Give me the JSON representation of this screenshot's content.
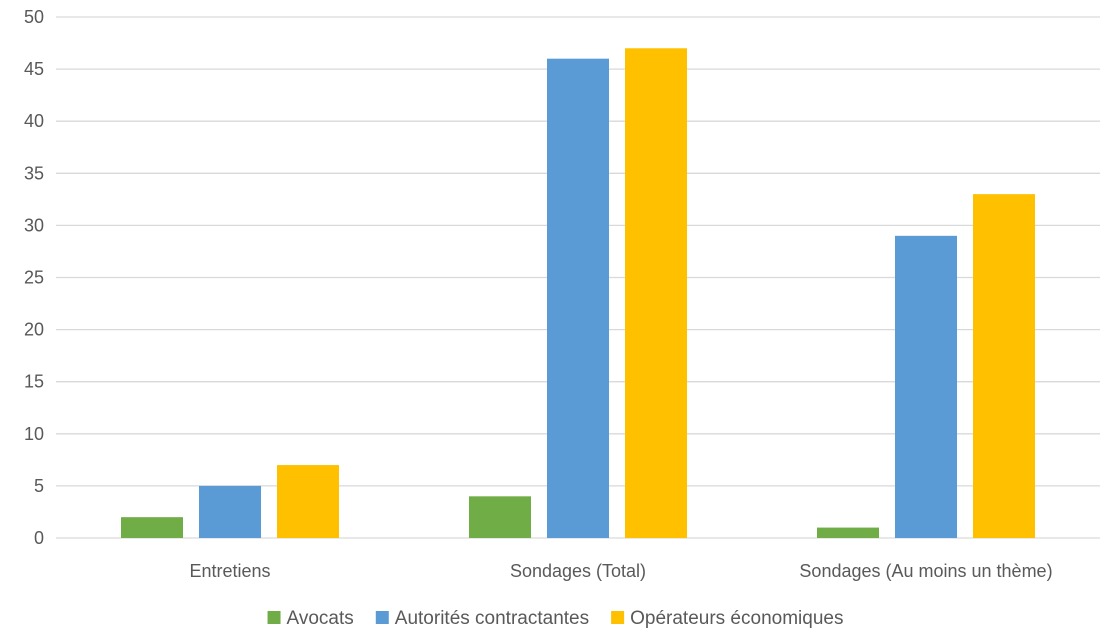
{
  "chart_data": {
    "type": "bar",
    "title": "",
    "xlabel": "",
    "ylabel": "",
    "categories": [
      "Entretiens",
      "Sondages (Total)",
      "Sondages (Au moins un thème)"
    ],
    "series": [
      {
        "name": "Avocats",
        "color": "#70ad47",
        "values": [
          2,
          4,
          1
        ]
      },
      {
        "name": "Autorités contractantes",
        "color": "#5b9bd5",
        "values": [
          5,
          46,
          29
        ]
      },
      {
        "name": "Opérateurs économiques",
        "color": "#ffc000",
        "values": [
          7,
          47,
          33
        ]
      }
    ],
    "ylim": [
      0,
      50
    ],
    "yticks": [
      "0",
      "5",
      "10",
      "15",
      "20",
      "25",
      "30",
      "35",
      "40",
      "45",
      "50"
    ],
    "grid": true,
    "legend_position": "bottom"
  }
}
